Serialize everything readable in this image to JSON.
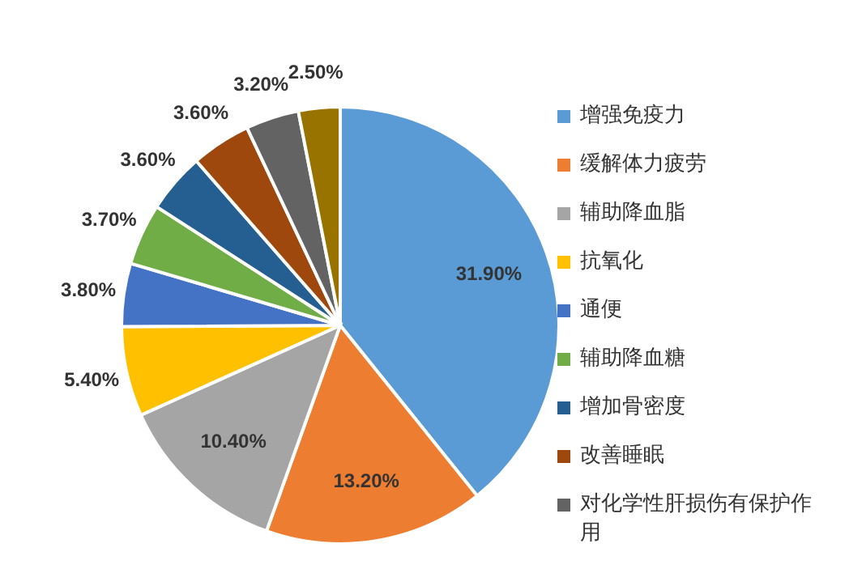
{
  "chart_data": {
    "type": "pie",
    "categories": [
      "增强免疫力",
      "缓解体力疲劳",
      "辅助降血脂",
      "抗氧化",
      "通便",
      "辅助降血糖",
      "增加骨密度",
      "改善睡眠",
      "对化学性肝损伤有保护作用",
      null
    ],
    "values": [
      31.9,
      13.2,
      10.4,
      5.4,
      3.8,
      3.7,
      3.6,
      3.6,
      3.2,
      2.5
    ],
    "value_labels": [
      "31.90%",
      "13.20%",
      "10.40%",
      "5.40%",
      "3.80%",
      "3.70%",
      "3.60%",
      "3.60%",
      "3.20%",
      "2.50%"
    ],
    "colors": [
      "#5b9bd5",
      "#ed7d31",
      "#a5a5a5",
      "#ffc000",
      "#4472c4",
      "#70ad47",
      "#255e91",
      "#9e480e",
      "#636363",
      "#997300"
    ],
    "legend": "right"
  }
}
